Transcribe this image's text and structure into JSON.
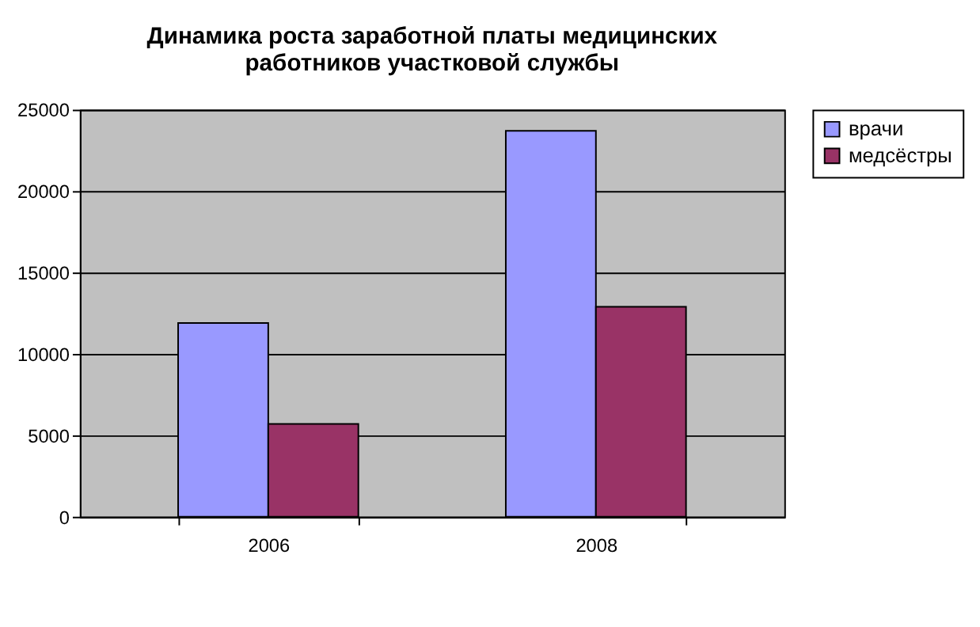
{
  "chart_data": {
    "type": "bar",
    "title": "Динамика роста заработной платы медицинских работников участковой службы",
    "categories": [
      "2006",
      "2008"
    ],
    "series": [
      {
        "name": "врачи",
        "color": "#9999ff",
        "values": [
          11900,
          23700
        ]
      },
      {
        "name": "медсёстры",
        "color": "#993366",
        "values": [
          5700,
          12900
        ]
      }
    ],
    "ylim": [
      0,
      25000
    ],
    "yticks": [
      0,
      5000,
      10000,
      15000,
      20000,
      25000
    ],
    "grid": "y",
    "legend": "right"
  }
}
